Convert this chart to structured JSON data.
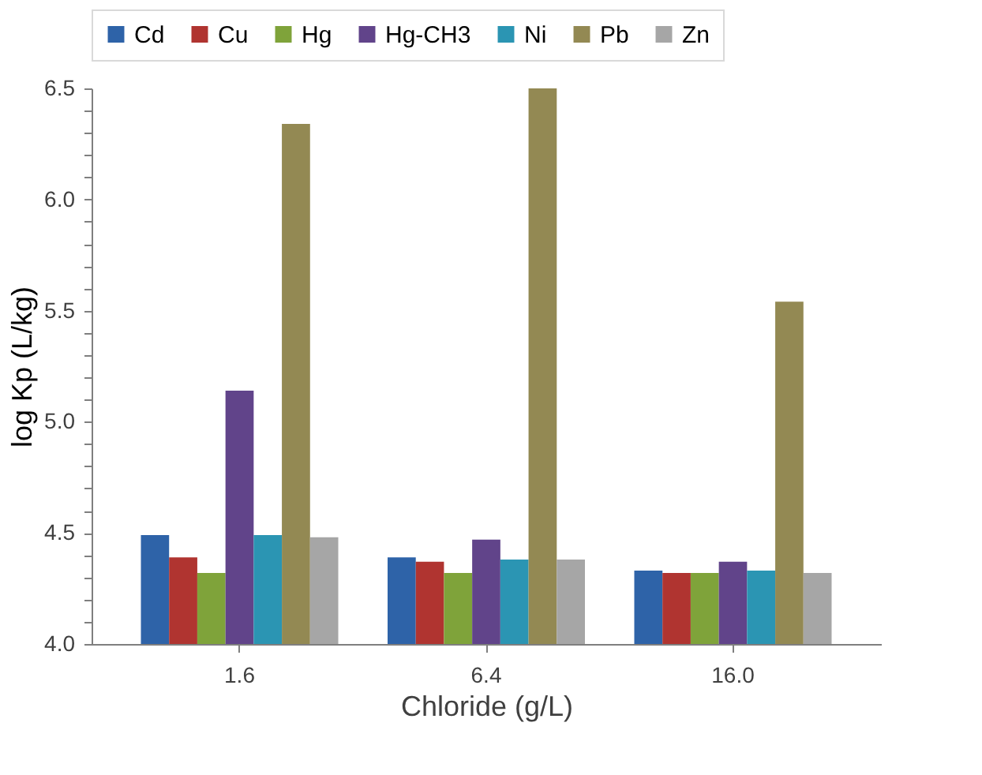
{
  "chart_data": {
    "type": "bar",
    "xlabel": "Chloride (g/L)",
    "ylabel": "log Kp (L/kg)",
    "categories": [
      "1.6",
      "6.4",
      "16.0"
    ],
    "series": [
      {
        "name": "Cd",
        "color": "#2e63a8",
        "values": [
          4.49,
          4.39,
          4.33
        ]
      },
      {
        "name": "Cu",
        "color": "#b03430",
        "values": [
          4.39,
          4.37,
          4.32
        ]
      },
      {
        "name": "Hg",
        "color": "#7fa33a",
        "values": [
          4.32,
          4.32,
          4.32
        ]
      },
      {
        "name": "Hg-CH3",
        "color": "#61448a",
        "values": [
          5.14,
          4.47,
          4.37
        ]
      },
      {
        "name": "Ni",
        "color": "#2b95b3",
        "values": [
          4.49,
          4.38,
          4.33
        ]
      },
      {
        "name": "Pb",
        "color": "#938953",
        "values": [
          6.34,
          6.5,
          5.54
        ]
      },
      {
        "name": "Zn",
        "color": "#a6a6a6",
        "values": [
          4.48,
          4.38,
          4.32
        ]
      }
    ],
    "ylim": [
      4.0,
      6.5
    ],
    "yticks": [
      {
        "value": 4.0,
        "label": "4.0"
      },
      {
        "value": 4.1,
        "label": null
      },
      {
        "value": 4.2,
        "label": null
      },
      {
        "value": 4.3,
        "label": null
      },
      {
        "value": 4.4,
        "label": null
      },
      {
        "value": 4.5,
        "label": "4.5"
      },
      {
        "value": 4.6,
        "label": null
      },
      {
        "value": 4.7,
        "label": null
      },
      {
        "value": 4.8,
        "label": null
      },
      {
        "value": 4.9,
        "label": null
      },
      {
        "value": 5.0,
        "label": "5.0"
      },
      {
        "value": 5.1,
        "label": null
      },
      {
        "value": 5.2,
        "label": null
      },
      {
        "value": 5.3,
        "label": null
      },
      {
        "value": 5.4,
        "label": null
      },
      {
        "value": 5.5,
        "label": "5.5"
      },
      {
        "value": 5.6,
        "label": null
      },
      {
        "value": 5.7,
        "label": null
      },
      {
        "value": 5.8,
        "label": null
      },
      {
        "value": 5.9,
        "label": null
      },
      {
        "value": 6.0,
        "label": "6.0"
      },
      {
        "value": 6.1,
        "label": null
      },
      {
        "value": 6.2,
        "label": null
      },
      {
        "value": 6.3,
        "label": null
      },
      {
        "value": 6.4,
        "label": null
      },
      {
        "value": 6.5,
        "label": "6.5"
      }
    ],
    "grid": false,
    "legend": "top"
  }
}
